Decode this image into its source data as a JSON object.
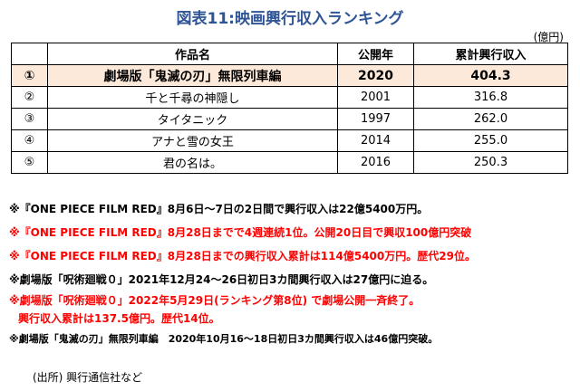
{
  "title": "図表11:映画興行収入ランキング",
  "unit": "(億円)",
  "table": {
    "headers": [
      "",
      "作品名",
      "公開年",
      "累計興行収入"
    ],
    "rows": [
      {
        "rank": "①",
        "name": "劇場版「鬼滅の刃」無限列車編",
        "year": "2020",
        "revenue": "404.3"
      },
      {
        "rank": "②",
        "name": "千と千尋の神隠し",
        "year": "2001",
        "revenue": "316.8"
      },
      {
        "rank": "③",
        "name": "タイタニック",
        "year": "1997",
        "revenue": "262.0"
      },
      {
        "rank": "④",
        "name": "アナと雪の女王",
        "year": "2014",
        "revenue": "255.0"
      },
      {
        "rank": "⑤",
        "name": "君の名は。",
        "year": "2016",
        "revenue": "250.3"
      }
    ]
  },
  "notes": [
    "※『ONE PIECE FILM RED』8月6日～7日の2日間で興行収入は22億5400万円。",
    "※『ONE PIECE FILM RED』8月28日までで4週連続1位。公開20日目で興収100億円突破",
    "※『ONE PIECE FILM RED』8月28日までの興行収入累計は114億5400万円。歴代29位。",
    "※劇場版「呪術廻戦０」2021年12月24～26日初日3カ間興行収入は27億円に迫る。",
    "※劇場版「呪術廻戦０」2022年5月29日(ランキング第8位) で劇場公開一斉終了。",
    "興行収入累計は137.5億円。歴代14位。",
    "※劇場版「鬼滅の刃」無限列車編　2020年10月16～18日初日3カ間興行収入は46億円突破。"
  ],
  "source": "(出所) 興行通信社など",
  "colors": {
    "title": "#2f5597",
    "highlight": "#fde9d9",
    "red_note": "#ff0000"
  }
}
